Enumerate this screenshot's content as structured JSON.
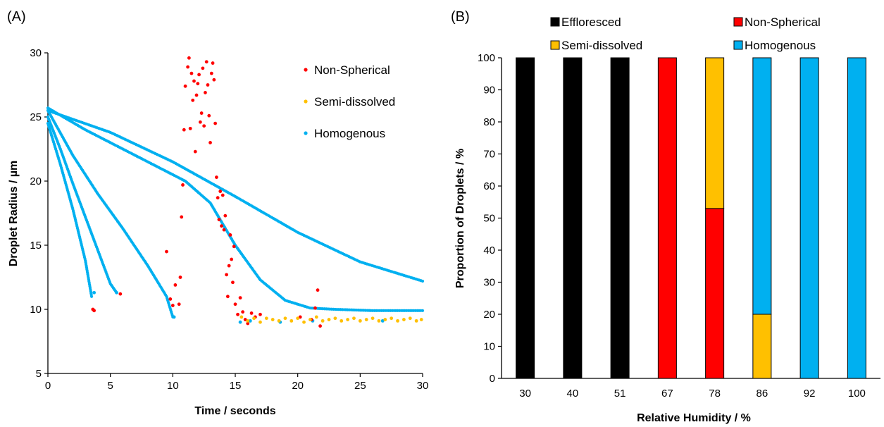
{
  "panels": {
    "a_label": "(A)",
    "b_label": "(B)"
  },
  "colors": {
    "Effloresced": "#000000",
    "Non-Spherical": "#ff0000",
    "Semi-dissolved": "#ffc000",
    "Homogenous": "#00b0f0"
  },
  "chart_data": [
    {
      "type": "scatter",
      "panel": "(A)",
      "title": "",
      "xlabel": "Time / seconds",
      "ylabel": "Droplet Radius / µm",
      "xlim": [
        0,
        30
      ],
      "ylim": [
        5,
        30
      ],
      "xticks": [
        0,
        5,
        10,
        15,
        20,
        25,
        30
      ],
      "yticks": [
        5,
        10,
        15,
        20,
        25,
        30
      ],
      "legend_position": "top-right",
      "legend": [
        "Non-Spherical",
        "Semi-dissolved",
        "Homogenous"
      ],
      "series": [
        {
          "name": "Homogenous",
          "color": "#00b0f0",
          "curves": [
            [
              [
                0,
                24.5
              ],
              [
                1,
                21.3
              ],
              [
                2,
                17.8
              ],
              [
                3,
                13.8
              ],
              [
                3.5,
                11.0
              ]
            ],
            [
              [
                0,
                25.0
              ],
              [
                1,
                22.5
              ],
              [
                2,
                19.8
              ],
              [
                3,
                17.2
              ],
              [
                4,
                14.6
              ],
              [
                5,
                12.0
              ],
              [
                5.5,
                11.3
              ]
            ],
            [
              [
                0,
                25.5
              ],
              [
                2,
                22.0
              ],
              [
                4,
                19.0
              ],
              [
                6,
                16.3
              ],
              [
                8,
                13.4
              ],
              [
                9.5,
                11.0
              ],
              [
                10,
                9.4
              ]
            ],
            [
              [
                0,
                25.7
              ],
              [
                3,
                24.0
              ],
              [
                6,
                22.5
              ],
              [
                9,
                21.0
              ],
              [
                11,
                20.0
              ],
              [
                13,
                18.3
              ],
              [
                15,
                15.0
              ],
              [
                17,
                12.3
              ],
              [
                19,
                10.7
              ],
              [
                21,
                10.1
              ],
              [
                23,
                10.0
              ],
              [
                26,
                9.9
              ],
              [
                30,
                9.9
              ]
            ],
            [
              [
                0,
                25.5
              ],
              [
                5,
                23.8
              ],
              [
                10,
                21.5
              ],
              [
                15,
                18.8
              ],
              [
                20,
                16.0
              ],
              [
                25,
                13.7
              ],
              [
                30,
                12.2
              ]
            ]
          ],
          "points": [
            [
              3.7,
              11.3
            ],
            [
              5.5,
              11.3
            ],
            [
              10.1,
              9.4
            ],
            [
              15.4,
              9.0
            ],
            [
              16.2,
              9.1
            ],
            [
              18.6,
              9.0
            ],
            [
              21.2,
              9.1
            ],
            [
              26.8,
              9.1
            ]
          ]
        },
        {
          "name": "Non-Spherical",
          "color": "#ff0000",
          "points": [
            [
              3.6,
              10.0
            ],
            [
              3.7,
              9.9
            ],
            [
              5.8,
              11.2
            ],
            [
              9.5,
              14.5
            ],
            [
              9.8,
              10.8
            ],
            [
              10.0,
              10.3
            ],
            [
              10.2,
              11.9
            ],
            [
              10.5,
              10.4
            ],
            [
              10.6,
              12.5
            ],
            [
              10.7,
              17.2
            ],
            [
              10.8,
              19.7
            ],
            [
              10.9,
              24.0
            ],
            [
              11.0,
              27.4
            ],
            [
              11.2,
              28.9
            ],
            [
              11.3,
              29.6
            ],
            [
              11.4,
              24.1
            ],
            [
              11.5,
              28.4
            ],
            [
              11.6,
              26.3
            ],
            [
              11.7,
              27.8
            ],
            [
              11.8,
              22.3
            ],
            [
              11.9,
              26.7
            ],
            [
              12.0,
              27.6
            ],
            [
              12.1,
              28.3
            ],
            [
              12.2,
              24.6
            ],
            [
              12.3,
              25.3
            ],
            [
              12.4,
              28.8
            ],
            [
              12.5,
              24.3
            ],
            [
              12.6,
              26.9
            ],
            [
              12.7,
              29.3
            ],
            [
              12.8,
              27.5
            ],
            [
              12.9,
              25.1
            ],
            [
              13.0,
              23.0
            ],
            [
              13.1,
              28.4
            ],
            [
              13.2,
              29.2
            ],
            [
              13.3,
              27.9
            ],
            [
              13.4,
              24.5
            ],
            [
              13.5,
              20.3
            ],
            [
              13.6,
              18.7
            ],
            [
              13.7,
              17.0
            ],
            [
              13.8,
              19.2
            ],
            [
              13.9,
              16.5
            ],
            [
              14.0,
              18.9
            ],
            [
              14.1,
              16.2
            ],
            [
              14.2,
              17.3
            ],
            [
              14.3,
              12.7
            ],
            [
              14.4,
              11.0
            ],
            [
              14.5,
              13.4
            ],
            [
              14.6,
              15.8
            ],
            [
              14.7,
              13.9
            ],
            [
              14.8,
              12.1
            ],
            [
              14.9,
              14.9
            ],
            [
              15.0,
              10.4
            ],
            [
              15.2,
              9.6
            ],
            [
              15.4,
              10.9
            ],
            [
              15.6,
              9.8
            ],
            [
              15.8,
              9.2
            ],
            [
              16.0,
              8.9
            ],
            [
              16.3,
              9.7
            ],
            [
              16.6,
              9.4
            ],
            [
              17.0,
              9.6
            ],
            [
              20.2,
              9.4
            ],
            [
              21.1,
              9.2
            ],
            [
              21.4,
              10.1
            ],
            [
              21.6,
              11.5
            ],
            [
              21.8,
              8.7
            ]
          ]
        },
        {
          "name": "Semi-dissolved",
          "color": "#ffc000",
          "points": [
            [
              15.5,
              9.4
            ],
            [
              16.0,
              9.1
            ],
            [
              16.5,
              9.3
            ],
            [
              17.0,
              9.0
            ],
            [
              17.5,
              9.3
            ],
            [
              18.0,
              9.2
            ],
            [
              18.5,
              9.1
            ],
            [
              19.0,
              9.3
            ],
            [
              19.5,
              9.1
            ],
            [
              20.0,
              9.3
            ],
            [
              20.5,
              9.0
            ],
            [
              21.0,
              9.2
            ],
            [
              21.5,
              9.4
            ],
            [
              22.0,
              9.1
            ],
            [
              22.5,
              9.2
            ],
            [
              23.0,
              9.3
            ],
            [
              23.5,
              9.1
            ],
            [
              24.0,
              9.2
            ],
            [
              24.5,
              9.3
            ],
            [
              25.0,
              9.1
            ],
            [
              25.5,
              9.2
            ],
            [
              26.0,
              9.3
            ],
            [
              26.5,
              9.1
            ],
            [
              27.0,
              9.2
            ],
            [
              27.5,
              9.3
            ],
            [
              28.0,
              9.1
            ],
            [
              28.5,
              9.2
            ],
            [
              29.0,
              9.3
            ],
            [
              29.5,
              9.1
            ],
            [
              29.9,
              9.2
            ]
          ]
        }
      ]
    },
    {
      "type": "bar",
      "panel": "(B)",
      "stacked": true,
      "title": "",
      "xlabel": "Relative Humidity / %",
      "ylabel": "Proportion of Droplets / %",
      "ylim": [
        0,
        100
      ],
      "yticks": [
        0,
        10,
        20,
        30,
        40,
        50,
        60,
        70,
        80,
        90,
        100
      ],
      "legend_position": "top",
      "legend": [
        "Effloresced",
        "Non-Spherical",
        "Semi-dissolved",
        "Homogenous"
      ],
      "categories": [
        "30",
        "40",
        "51",
        "67",
        "78",
        "86",
        "92",
        "100"
      ],
      "series": [
        {
          "name": "Effloresced",
          "color": "#000000",
          "values": [
            100,
            100,
            100,
            0,
            0,
            0,
            0,
            0
          ]
        },
        {
          "name": "Non-Spherical",
          "color": "#ff0000",
          "values": [
            0,
            0,
            0,
            100,
            53,
            0,
            0,
            0
          ]
        },
        {
          "name": "Semi-dissolved",
          "color": "#ffc000",
          "values": [
            0,
            0,
            0,
            0,
            47,
            20,
            0,
            0
          ]
        },
        {
          "name": "Homogenous",
          "color": "#00b0f0",
          "values": [
            0,
            0,
            0,
            0,
            0,
            80,
            100,
            100
          ]
        }
      ]
    }
  ]
}
